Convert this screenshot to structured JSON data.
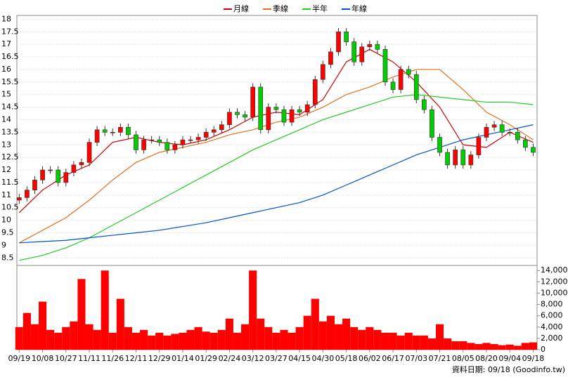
{
  "chart_data": {
    "type": "candlestick",
    "legend": [
      "月線",
      "季線",
      "半年",
      "年線"
    ],
    "footer": "資料日期: 09/18 (Goodinfo.tw)",
    "up_color": "#ff0000",
    "down_color": "#00cc00",
    "volume_color": "#ff0000",
    "xlim": [
      -0.3,
      66.5
    ],
    "xticks": [
      {
        "value": 0,
        "label": "09/19"
      },
      {
        "value": 3,
        "label": "10/08"
      },
      {
        "value": 6,
        "label": "10/27"
      },
      {
        "value": 9,
        "label": "11/11"
      },
      {
        "value": 12,
        "label": "11/26"
      },
      {
        "value": 15,
        "label": "12/11"
      },
      {
        "value": 18,
        "label": "12/29"
      },
      {
        "value": 21,
        "label": "01/14"
      },
      {
        "value": 24,
        "label": "01/29"
      },
      {
        "value": 27,
        "label": "02/24"
      },
      {
        "value": 30,
        "label": "03/12"
      },
      {
        "value": 33,
        "label": "03/27"
      },
      {
        "value": 36,
        "label": "04/15"
      },
      {
        "value": 39,
        "label": "04/30"
      },
      {
        "value": 42,
        "label": "05/18"
      },
      {
        "value": 45,
        "label": "06/02"
      },
      {
        "value": 48,
        "label": "06/17"
      },
      {
        "value": 51,
        "label": "07/03"
      },
      {
        "value": 54,
        "label": "07/21"
      },
      {
        "value": 57,
        "label": "08/05"
      },
      {
        "value": 60,
        "label": "08/20"
      },
      {
        "value": 63,
        "label": "09/04"
      },
      {
        "value": 66,
        "label": "09/18"
      }
    ],
    "ylim": [
      8.2,
      18.15
    ],
    "yticks": [
      8.5,
      9,
      9.5,
      10,
      10.5,
      11,
      11.5,
      12,
      12.5,
      13,
      13.5,
      14,
      14.5,
      15,
      15.5,
      16,
      16.5,
      17,
      17.5,
      18
    ],
    "y2lim": [
      0,
      14900
    ],
    "y2ticks": [
      0,
      {
        "value": 2000,
        "label": "2,000"
      },
      {
        "value": 4000,
        "label": "4,000"
      },
      {
        "value": 6000,
        "label": "6,000"
      },
      {
        "value": 8000,
        "label": "8,000"
      },
      {
        "value": 10000,
        "label": "10,000"
      },
      {
        "value": 12000,
        "label": "12,000"
      },
      {
        "value": 14000,
        "label": "14,000"
      }
    ],
    "open": [
      10.8,
      10.9,
      11.2,
      11.6,
      12.0,
      12.0,
      11.5,
      11.9,
      12.2,
      12.3,
      13.1,
      13.6,
      13.5,
      13.5,
      13.7,
      13.4,
      12.8,
      13.2,
      13.2,
      13.1,
      12.8,
      13.0,
      13.2,
      13.2,
      13.3,
      13.5,
      13.6,
      13.8,
      14.3,
      14.2,
      14.1,
      15.3,
      13.6,
      14.5,
      14.4,
      13.9,
      14.4,
      14.3,
      14.6,
      15.6,
      16.2,
      16.7,
      17.5,
      17.1,
      16.3,
      16.9,
      17.0,
      16.8,
      15.5,
      15.2,
      16.0,
      15.8,
      14.8,
      14.4,
      13.3,
      12.7,
      12.2,
      12.8,
      12.2,
      12.6,
      13.3,
      13.7,
      13.8,
      13.5,
      13.5,
      13.2,
      12.9
    ],
    "high": [
      11.05,
      11.35,
      11.75,
      12.15,
      12.15,
      12.15,
      12.05,
      12.35,
      12.45,
      13.25,
      13.75,
      13.75,
      13.65,
      13.85,
      13.85,
      13.55,
      13.35,
      13.35,
      13.35,
      13.25,
      13.15,
      13.35,
      13.35,
      13.45,
      13.65,
      13.75,
      13.95,
      14.45,
      14.45,
      14.35,
      15.45,
      15.45,
      14.65,
      14.65,
      14.55,
      14.55,
      14.55,
      14.75,
      15.75,
      16.35,
      16.85,
      17.65,
      17.65,
      17.25,
      17.05,
      17.15,
      17.15,
      16.95,
      15.65,
      16.15,
      16.15,
      15.95,
      14.95,
      14.55,
      13.45,
      12.85,
      12.95,
      12.95,
      12.75,
      13.45,
      13.85,
      13.95,
      13.95,
      13.65,
      13.65,
      13.35,
      13.05
    ],
    "low": [
      10.65,
      10.75,
      11.05,
      11.45,
      11.85,
      11.35,
      11.35,
      11.75,
      12.05,
      12.15,
      12.95,
      13.35,
      13.35,
      13.35,
      13.25,
      12.65,
      12.65,
      13.05,
      12.95,
      12.65,
      12.65,
      12.85,
      13.05,
      13.05,
      13.15,
      13.35,
      13.45,
      13.65,
      14.05,
      13.95,
      13.95,
      13.45,
      13.45,
      14.25,
      13.75,
      13.75,
      14.15,
      14.15,
      14.45,
      15.45,
      16.05,
      16.55,
      16.95,
      16.15,
      16.15,
      16.75,
      16.65,
      15.35,
      15.05,
      15.05,
      15.65,
      14.65,
      14.25,
      13.15,
      12.55,
      12.05,
      12.05,
      12.05,
      12.05,
      12.45,
      13.15,
      13.55,
      13.35,
      13.35,
      13.05,
      12.75,
      12.55
    ],
    "close": [
      10.9,
      11.2,
      11.6,
      12.0,
      12.0,
      11.5,
      11.9,
      12.2,
      12.3,
      13.1,
      13.6,
      13.5,
      13.5,
      13.7,
      13.4,
      12.8,
      13.2,
      13.2,
      13.1,
      12.8,
      13.0,
      13.2,
      13.2,
      13.3,
      13.5,
      13.6,
      13.8,
      14.3,
      14.2,
      14.1,
      15.3,
      13.6,
      14.5,
      14.4,
      13.9,
      14.4,
      14.3,
      14.6,
      15.6,
      16.2,
      16.7,
      17.5,
      17.1,
      16.3,
      16.9,
      17.0,
      16.8,
      15.5,
      15.2,
      16.0,
      15.8,
      14.8,
      14.4,
      13.3,
      12.7,
      12.2,
      12.8,
      12.2,
      12.6,
      13.3,
      13.7,
      13.8,
      13.5,
      13.5,
      13.2,
      12.9,
      12.7
    ],
    "volume": [
      4000,
      6500,
      4500,
      8500,
      3500,
      3000,
      4000,
      5000,
      12500,
      4500,
      3500,
      14000,
      3000,
      9000,
      4000,
      3000,
      3500,
      2500,
      3000,
      2500,
      2800,
      3000,
      3500,
      4000,
      3200,
      3000,
      3500,
      5500,
      3000,
      4500,
      14000,
      5500,
      4000,
      3000,
      3500,
      3000,
      4000,
      6000,
      9000,
      5000,
      6000,
      4500,
      5500,
      4000,
      3500,
      4000,
      3500,
      3000,
      3000,
      2500,
      3000,
      2500,
      2500,
      2000,
      4500,
      2000,
      1500,
      1500,
      1200,
      1000,
      1200,
      1000,
      800,
      900,
      700,
      1200,
      1300
    ],
    "line_x": [
      0,
      3,
      6,
      9,
      12,
      15,
      18,
      21,
      24,
      27,
      30,
      33,
      36,
      39,
      42,
      45,
      48,
      51,
      54,
      57,
      60,
      63,
      66
    ],
    "series": [
      {
        "name": "月線",
        "color": "#cc0000",
        "values": [
          10.3,
          11.2,
          11.8,
          12.2,
          13.1,
          13.3,
          13.1,
          13.0,
          13.2,
          13.6,
          14.1,
          14.3,
          14.2,
          14.8,
          16.3,
          16.8,
          16.3,
          15.5,
          14.5,
          13.0,
          12.9,
          13.5,
          13.1
        ]
      },
      {
        "name": "季線",
        "color": "#e07020",
        "values": [
          9.1,
          9.6,
          10.1,
          10.8,
          11.6,
          12.3,
          12.7,
          12.9,
          13.1,
          13.4,
          13.6,
          13.9,
          14.1,
          14.5,
          15.0,
          15.3,
          15.7,
          16.0,
          16.0,
          15.2,
          14.3,
          13.8,
          13.2
        ]
      },
      {
        "name": "半年",
        "color": "#22cc22",
        "values": [
          8.4,
          8.6,
          8.9,
          9.3,
          9.8,
          10.3,
          10.8,
          11.3,
          11.8,
          12.3,
          12.8,
          13.2,
          13.6,
          14.0,
          14.3,
          14.6,
          14.9,
          15.0,
          14.9,
          14.8,
          14.7,
          14.7,
          14.6
        ]
      },
      {
        "name": "年線",
        "color": "#0050c8",
        "values": [
          9.1,
          9.15,
          9.2,
          9.3,
          9.4,
          9.5,
          9.6,
          9.75,
          9.9,
          10.1,
          10.3,
          10.5,
          10.7,
          11.0,
          11.4,
          11.8,
          12.2,
          12.6,
          12.9,
          13.2,
          13.4,
          13.6,
          13.8
        ]
      }
    ]
  }
}
